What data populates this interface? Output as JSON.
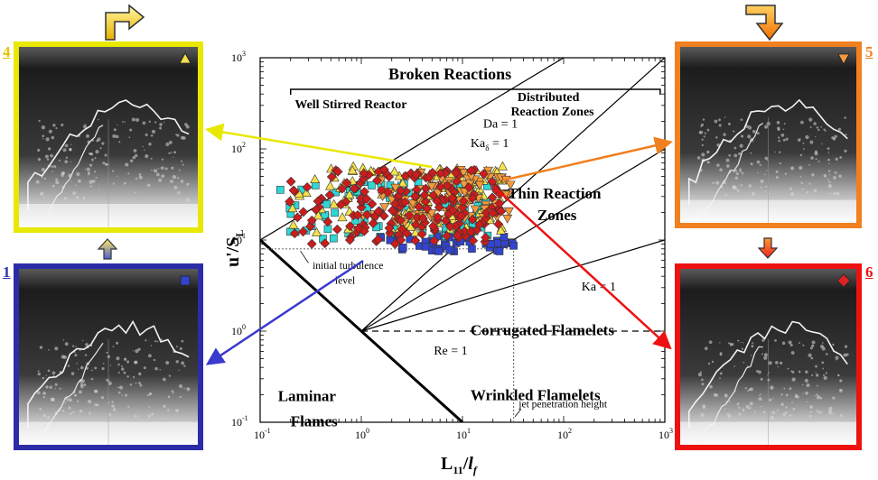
{
  "panels": [
    {
      "id": "4",
      "label": "4",
      "color": "#e8e800",
      "marker": "triangle-up",
      "marker_color": "#f5e04a"
    },
    {
      "id": "1",
      "label": "1",
      "color": "#3333aa",
      "marker": "square",
      "marker_color": "#3344cc"
    },
    {
      "id": "5",
      "label": "5",
      "color": "#f08020",
      "marker": "triangle-down",
      "marker_color": "#f59a3a"
    },
    {
      "id": "6",
      "label": "6",
      "color": "#ee1111",
      "marker": "diamond",
      "marker_color": "#dd2222"
    }
  ],
  "chart_data": {
    "type": "scatter",
    "xlabel_main": "L",
    "xlabel_sub": "11",
    "xlabel_div": "/",
    "xlabel_l": "l",
    "xlabel_f": "f",
    "ylabel_main": "u'/S",
    "ylabel_sub": "L",
    "xscale": "log",
    "yscale": "log",
    "xlim": [
      0.1,
      1000
    ],
    "ylim": [
      0.1,
      1000
    ],
    "x_ticks": [
      {
        "base": "10",
        "exp": "-1"
      },
      {
        "base": "10",
        "exp": "0"
      },
      {
        "base": "10",
        "exp": "1"
      },
      {
        "base": "10",
        "exp": "2"
      },
      {
        "base": "10",
        "exp": "3"
      }
    ],
    "y_ticks": [
      {
        "base": "10",
        "exp": "-1"
      },
      {
        "base": "10",
        "exp": "0"
      },
      {
        "base": "10",
        "exp": "1"
      },
      {
        "base": "10",
        "exp": "2"
      },
      {
        "base": "10",
        "exp": "3"
      }
    ],
    "regions": {
      "broken": "Broken Reactions",
      "wsr": "Well Stirred Reactor",
      "drz1": "Distributed",
      "drz2": "Reaction Zones",
      "thin1": "Thin Reaction",
      "thin2": "Zones",
      "corrugated": "Corrugated Flamelets",
      "wrinkled": "Wrinkled Flamelets",
      "laminar1": "Laminar",
      "laminar2": "Flames"
    },
    "lines": {
      "da": "Da = 1",
      "ka0": "Ka",
      "ka0_sub": "δ",
      "ka0_rest": " = 1",
      "ka": "Ka = 1",
      "re": "Re = 1"
    },
    "annotations": {
      "turb1": "initial turbulence",
      "turb2": "level",
      "jet": "jet penetration height"
    },
    "reference_lines": {
      "initial_turbulence_level": 8,
      "jet_penetration_height": 32
    },
    "series": [
      {
        "marker": "square",
        "color": "#2fd6d6",
        "xrange": [
          0.15,
          20
        ],
        "yrange": [
          10,
          45
        ],
        "count": 110
      },
      {
        "marker": "square",
        "color": "#3344cc",
        "xrange": [
          0.9,
          35
        ],
        "yrange": [
          7.5,
          11
        ],
        "count": 45
      },
      {
        "marker": "triangle-up",
        "color": "#f5e04a",
        "xrange": [
          0.15,
          25
        ],
        "yrange": [
          12,
          65
        ],
        "count": 120
      },
      {
        "marker": "triangle-down",
        "color": "#f59a3a",
        "xrange": [
          1.0,
          30
        ],
        "yrange": [
          15,
          60
        ],
        "count": 110
      },
      {
        "marker": "diamond",
        "color": "#cc1c1c",
        "xrange": [
          0.18,
          25
        ],
        "yrange": [
          9,
          60
        ],
        "count": 190
      }
    ]
  }
}
